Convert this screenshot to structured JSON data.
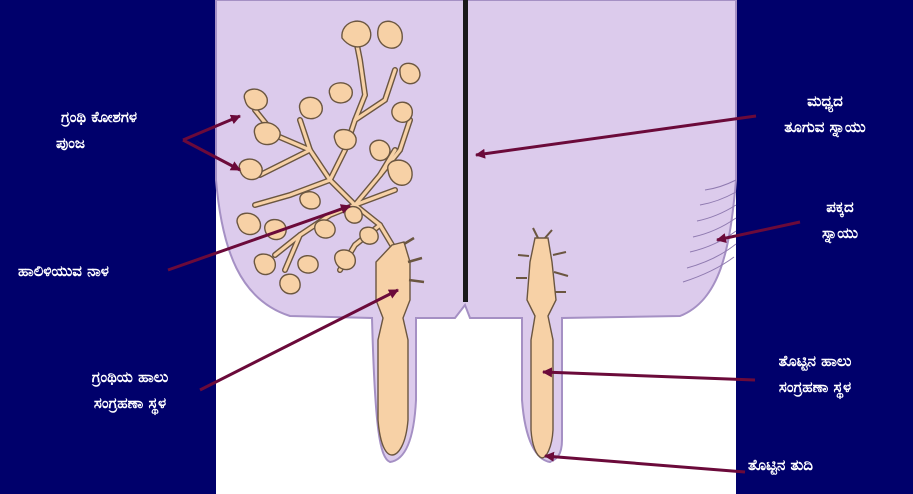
{
  "labels": {
    "alveoli_cluster": {
      "line1": "ಗ್ರಂಥಿ ಕೋಶಗಳ",
      "line2": "ಪುಂಜ"
    },
    "milk_duct": {
      "line1": "ಹಾಲಿಳಿಯುವ ನಾಳ"
    },
    "gland_cistern": {
      "line1": "ಗ್ರಂಥಿಯ ಹಾಲು",
      "line2": "ಸಂಗ್ರಹಣಾ ಸ್ಥಳ"
    },
    "median_ligament": {
      "line1": "ಮಧ್ಯದ",
      "line2": "ತೂಗುವ ಸ್ನಾಯು"
    },
    "lateral_ligament": {
      "line1": "ಪಕ್ಕದ",
      "line2": "ಸ್ನಾಯು"
    },
    "teat_cistern": {
      "line1": "ತೊಟ್ಟಿನ ಹಾಲು",
      "line2": "ಸಂಗ್ರಹಣಾ ಸ್ಥಳ"
    },
    "teat_tip": {
      "line1": "ತೊಟ್ಟಿನ ತುದಿ"
    }
  },
  "colors": {
    "background": "#00006b",
    "udder": "#dccbec",
    "udder_outline": "#a590c4",
    "tissue": "#f7d1a6",
    "tissue_outline": "#6b5640",
    "septum": "#1a1a1a",
    "arrow": "#6b0a3a",
    "panel": "#ffffff"
  }
}
